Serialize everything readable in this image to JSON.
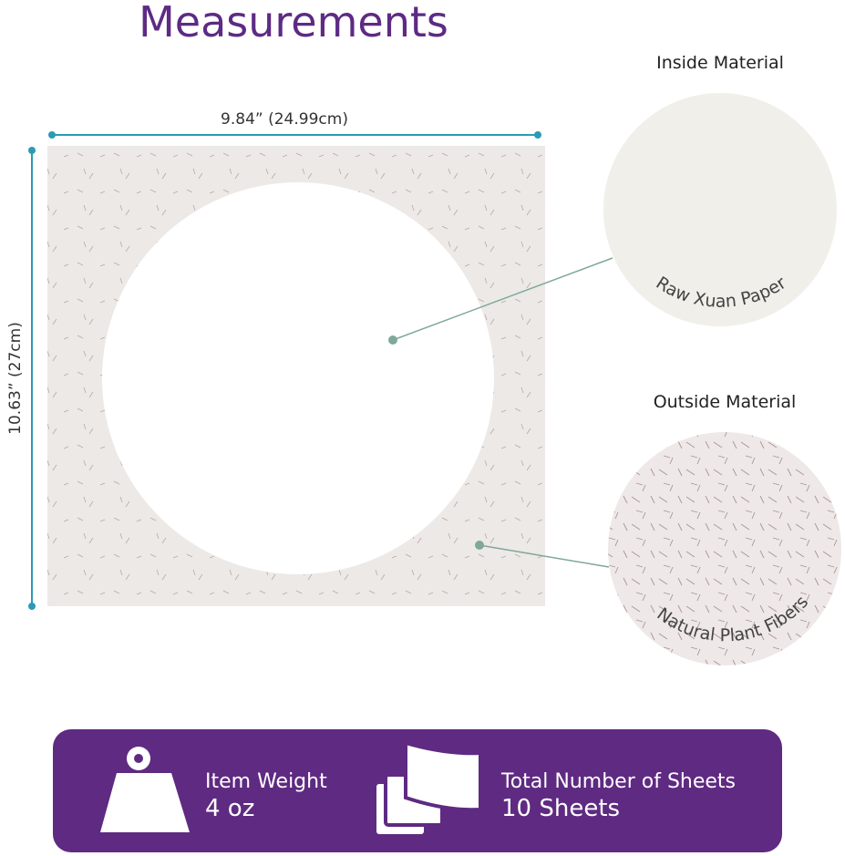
{
  "title": "Measurements",
  "dimensions": {
    "width_label": "9.84” (24.99cm)",
    "height_label": "10.63” (27cm)"
  },
  "materials": [
    {
      "heading": "Inside Material",
      "caption": "Raw Xuan Paper"
    },
    {
      "heading": "Outside Material",
      "caption": "Natural Plant Fibers"
    }
  ],
  "specs": [
    {
      "icon": "weight-icon",
      "label": "Item Weight",
      "value": "4 oz"
    },
    {
      "icon": "sheets-stack-icon",
      "label": "Total Number of Sheets",
      "value": "10 Sheets"
    }
  ],
  "colors": {
    "brand_purple": "#5e2a84",
    "dimension_teal": "#2a9bb5",
    "pointer_green": "#7fa89a",
    "paper": "#ece8e3"
  }
}
